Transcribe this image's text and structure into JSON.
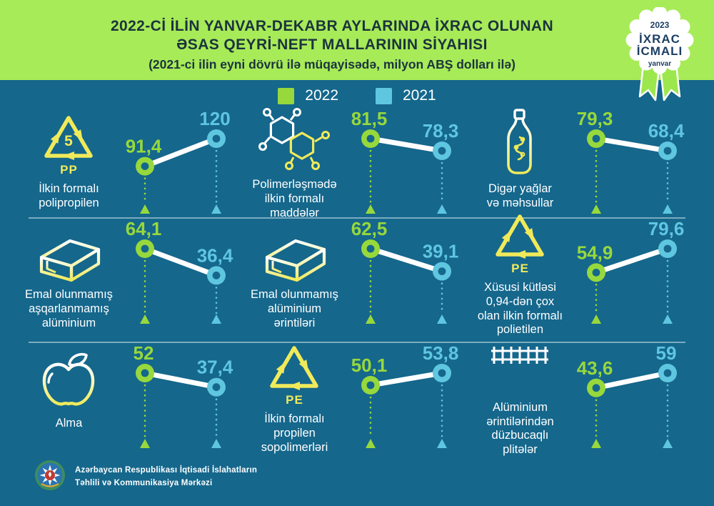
{
  "header": {
    "title_line1": "2022-Cİ İLİN YANVAR-DEKABR AYLARINDA İXRAC OLUNAN",
    "title_line2": "ƏSAS QEYRİ-NEFT MALLARININ SİYAHISI",
    "title_line3": "(2021-ci ilin eyni dövrü ilə müqayisədə, milyon ABŞ dolları ilə)"
  },
  "badge": {
    "year": "2023",
    "line1": "İXRAC",
    "line2": "İCMALI",
    "month": "yanvar"
  },
  "legend": [
    {
      "label": "2022",
      "color": "#97D83C"
    },
    {
      "label": "2021",
      "color": "#5FC6E0"
    }
  ],
  "colors": {
    "background": "#15678C",
    "header_band": "#A7EB58",
    "title_text": "#1C333D",
    "accent_2022": "#97D83C",
    "accent_2021": "#5FC6E0",
    "icon_yellow": "#F0EA5A",
    "badge_navy": "#1C3E64",
    "connector": "#FFFFFF"
  },
  "footer": {
    "org_line1": "Azərbaycan Respublikası İqtisadi İslahatların",
    "org_line2": "Təhlili və Kommunikasiya Mərkəzi"
  },
  "chart_data": {
    "type": "line",
    "subtype": "slope-comparison",
    "title": "2022-ci ilin yanvar-dekabr aylarında ixrac olunan əsas qeyri-neft mallarının siyahısı",
    "unit": "milyon ABŞ dolları",
    "series_years": [
      "2022",
      "2021"
    ],
    "legend_position": "top-center",
    "items": [
      {
        "icon": "recycling-pp5-icon",
        "icon_text": "5",
        "icon_sub": "PP",
        "label_lines": [
          "İlkin formalı",
          "polipropilen"
        ],
        "v2022": 91.4,
        "v2021": 120,
        "display_2022": "91,4",
        "display_2021": "120"
      },
      {
        "icon": "polymer-molecule-icon",
        "icon_text": "",
        "icon_sub": "",
        "label_lines": [
          "Polimerləşmədə",
          "ilkin formalı",
          "maddələr"
        ],
        "v2022": 81.5,
        "v2021": 78.3,
        "display_2022": "81,5",
        "display_2021": "78,3"
      },
      {
        "icon": "oil-bottle-icon",
        "icon_text": "",
        "icon_sub": "",
        "label_lines": [
          "Digər yağlar",
          "və məhsullar"
        ],
        "v2022": 79.3,
        "v2021": 68.4,
        "display_2022": "79,3",
        "display_2021": "68,4"
      },
      {
        "icon": "aluminium-ingot-icon",
        "icon_text": "",
        "icon_sub": "",
        "label_lines": [
          "Emal olunmamış",
          "aşqarlanmamış",
          "alüminium"
        ],
        "v2022": 64.1,
        "v2021": 36.4,
        "display_2022": "64,1",
        "display_2021": "36,4"
      },
      {
        "icon": "aluminium-ingot-icon",
        "icon_text": "",
        "icon_sub": "",
        "label_lines": [
          "Emal olunmamış",
          "alüminium",
          "ərintiləri"
        ],
        "v2022": 62.5,
        "v2021": 39.1,
        "display_2022": "62,5",
        "display_2021": "39,1"
      },
      {
        "icon": "recycling-pe-icon",
        "icon_text": "",
        "icon_sub": "PE",
        "label_lines": [
          "Xüsusi kütləsi",
          "0,94-dən çox",
          "olan ilkin formalı",
          "polietilen"
        ],
        "v2022": 54.9,
        "v2021": 79.6,
        "display_2022": "54,9",
        "display_2021": "79,6"
      },
      {
        "icon": "apple-icon",
        "icon_text": "",
        "icon_sub": "",
        "label_lines": [
          "Alma"
        ],
        "v2022": 52,
        "v2021": 37.4,
        "display_2022": "52",
        "display_2021": "37,4"
      },
      {
        "icon": "recycling-pe-icon",
        "icon_text": "",
        "icon_sub": "PE",
        "label_lines": [
          "İlkin formalı",
          "propilen",
          "sopolimerləri"
        ],
        "v2022": 50.1,
        "v2021": 53.8,
        "display_2022": "50,1",
        "display_2021": "53,8"
      },
      {
        "icon": "aluminium-plate-icon",
        "icon_text": "",
        "icon_sub": "",
        "label_lines": [
          "Alüminium",
          "ərintilərindən",
          "düzbucaqlı",
          "plitələr"
        ],
        "v2022": 43.6,
        "v2021": 59,
        "display_2022": "43,6",
        "display_2021": "59"
      }
    ]
  }
}
